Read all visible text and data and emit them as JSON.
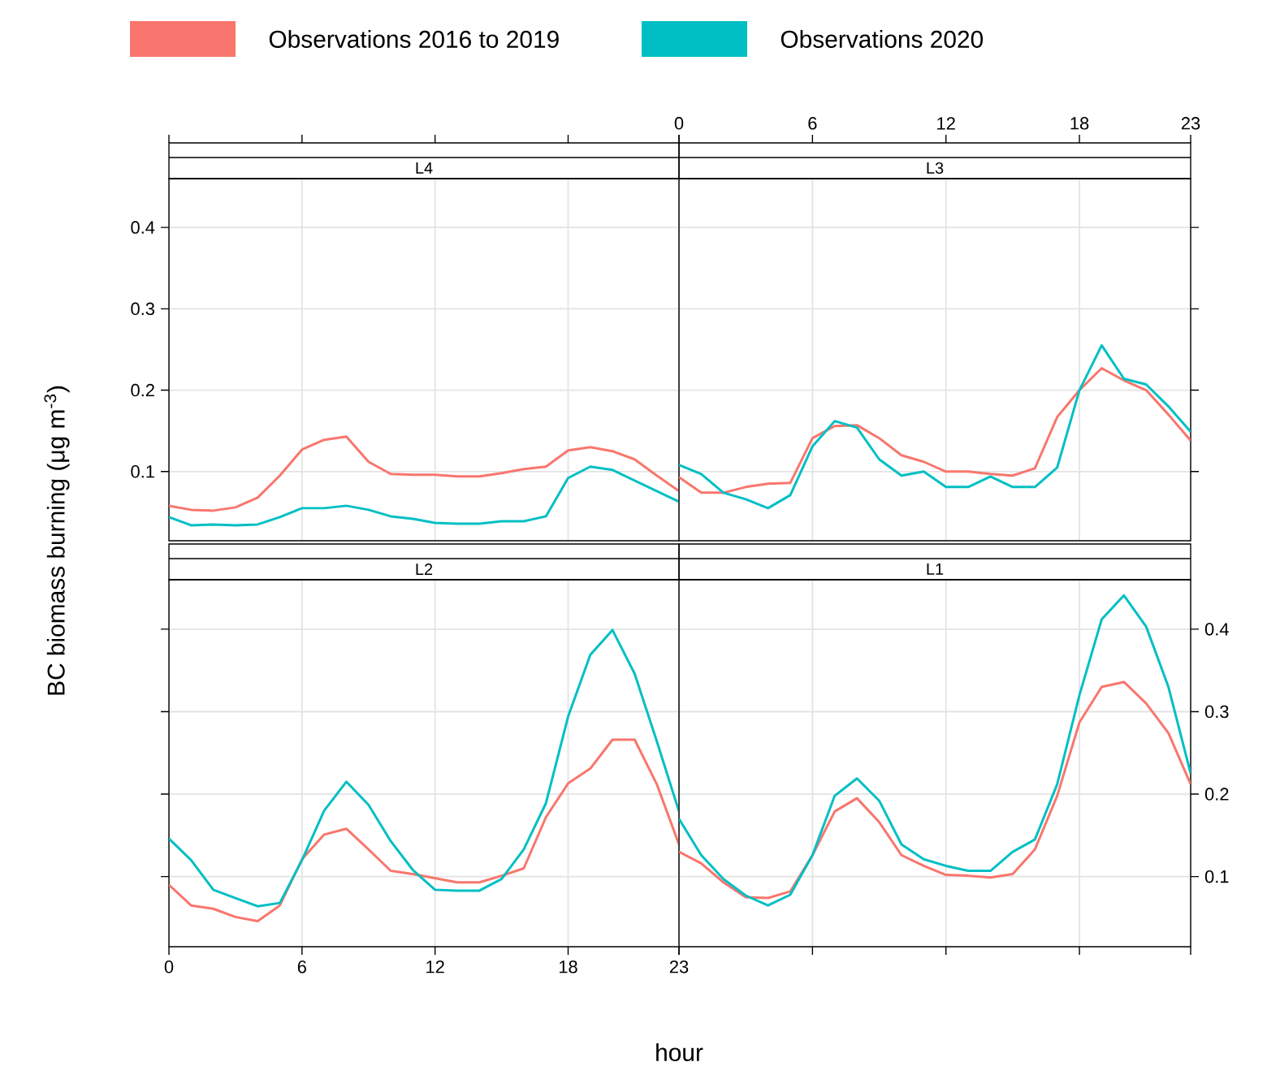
{
  "chart_data": [
    {
      "type": "line",
      "title": "L4",
      "ylabel": "BC biomass burning (μg m$^{-3}$)",
      "legend": "top",
      "grid": true,
      "tick_labels": "y",
      "xlim": [
        0,
        23
      ],
      "xticks": [
        0,
        6,
        12,
        18,
        23
      ],
      "ylim": [
        0.015,
        0.46
      ],
      "yticks": [
        0.1,
        0.2,
        0.3,
        0.4
      ],
      "x": [
        0,
        1,
        2,
        3,
        4,
        5,
        6,
        7,
        8,
        9,
        10,
        11,
        12,
        13,
        14,
        15,
        16,
        17,
        18,
        19,
        20,
        21,
        22,
        23
      ],
      "series": [
        {
          "name": "Observations 2016 to 2019",
          "color": "#f8766d",
          "values": [
            0.058,
            0.053,
            0.052,
            0.056,
            0.068,
            0.095,
            0.127,
            0.139,
            0.143,
            0.112,
            0.097,
            0.096,
            0.096,
            0.094,
            0.094,
            0.098,
            0.103,
            0.106,
            0.126,
            0.13,
            0.125,
            0.115,
            0.095,
            0.076
          ]
        },
        {
          "name": "Observations 2020",
          "color": "#00bfc4",
          "values": [
            0.044,
            0.034,
            0.035,
            0.034,
            0.035,
            0.044,
            0.055,
            0.055,
            0.058,
            0.053,
            0.045,
            0.042,
            0.037,
            0.036,
            0.036,
            0.039,
            0.039,
            0.045,
            0.092,
            0.106,
            0.102,
            0.089,
            0.076,
            0.063
          ]
        }
      ]
    },
    {
      "type": "line",
      "title": "L3",
      "grid": true,
      "tick_labels": "x",
      "xlim": [
        0,
        23
      ],
      "xticks": [
        0,
        6,
        12,
        18,
        23
      ],
      "ylim": [
        0.015,
        0.46
      ],
      "yticks": [
        0.1,
        0.2,
        0.3,
        0.4
      ],
      "x": [
        0,
        1,
        2,
        3,
        4,
        5,
        6,
        7,
        8,
        9,
        10,
        11,
        12,
        13,
        14,
        15,
        16,
        17,
        18,
        19,
        20,
        21,
        22,
        23
      ],
      "series": [
        {
          "color": "#f8766d",
          "values": [
            0.093,
            0.074,
            0.074,
            0.081,
            0.085,
            0.086,
            0.141,
            0.156,
            0.157,
            0.141,
            0.12,
            0.112,
            0.1,
            0.1,
            0.097,
            0.095,
            0.104,
            0.167,
            0.2,
            0.227,
            0.212,
            0.2,
            0.17,
            0.138
          ]
        },
        {
          "color": "#00bfc4",
          "values": [
            0.108,
            0.097,
            0.074,
            0.066,
            0.055,
            0.071,
            0.131,
            0.162,
            0.154,
            0.115,
            0.095,
            0.1,
            0.081,
            0.081,
            0.094,
            0.081,
            0.081,
            0.105,
            0.2,
            0.255,
            0.214,
            0.207,
            0.18,
            0.149
          ]
        }
      ]
    },
    {
      "type": "line",
      "title": "L2",
      "xlabel": "hour",
      "grid": true,
      "tick_labels": "x",
      "xlim": [
        0,
        23
      ],
      "xticks": [
        0,
        6,
        12,
        18,
        23
      ],
      "ylim": [
        0.015,
        0.46
      ],
      "yticks": [
        0.1,
        0.2,
        0.3,
        0.4
      ],
      "x": [
        0,
        1,
        2,
        3,
        4,
        5,
        6,
        7,
        8,
        9,
        10,
        11,
        12,
        13,
        14,
        15,
        16,
        17,
        18,
        19,
        20,
        21,
        22,
        23
      ],
      "series": [
        {
          "color": "#f8766d",
          "values": [
            0.09,
            0.065,
            0.061,
            0.051,
            0.046,
            0.065,
            0.121,
            0.151,
            0.158,
            0.133,
            0.107,
            0.103,
            0.098,
            0.093,
            0.093,
            0.101,
            0.11,
            0.172,
            0.213,
            0.231,
            0.266,
            0.266,
            0.212,
            0.139
          ]
        },
        {
          "color": "#00bfc4",
          "values": [
            0.146,
            0.12,
            0.084,
            0.074,
            0.064,
            0.068,
            0.12,
            0.18,
            0.215,
            0.187,
            0.143,
            0.108,
            0.084,
            0.083,
            0.083,
            0.097,
            0.133,
            0.189,
            0.294,
            0.369,
            0.399,
            0.346,
            0.264,
            0.179
          ]
        }
      ]
    },
    {
      "type": "line",
      "title": "L1",
      "grid": true,
      "tick_labels": "y",
      "xlim": [
        0,
        23
      ],
      "xticks": [
        0,
        6,
        12,
        18,
        23
      ],
      "ylim": [
        0.015,
        0.46
      ],
      "yticks": [
        0.1,
        0.2,
        0.3,
        0.4
      ],
      "x": [
        0,
        1,
        2,
        3,
        4,
        5,
        6,
        7,
        8,
        9,
        10,
        11,
        12,
        13,
        14,
        15,
        16,
        17,
        18,
        19,
        20,
        21,
        22,
        23
      ],
      "series": [
        {
          "color": "#f8766d",
          "values": [
            0.13,
            0.116,
            0.093,
            0.075,
            0.074,
            0.082,
            0.126,
            0.179,
            0.195,
            0.166,
            0.126,
            0.113,
            0.102,
            0.101,
            0.099,
            0.103,
            0.133,
            0.198,
            0.287,
            0.33,
            0.336,
            0.31,
            0.274,
            0.212
          ]
        },
        {
          "color": "#00bfc4",
          "values": [
            0.17,
            0.126,
            0.097,
            0.077,
            0.065,
            0.078,
            0.126,
            0.198,
            0.219,
            0.192,
            0.139,
            0.121,
            0.113,
            0.107,
            0.107,
            0.13,
            0.145,
            0.212,
            0.32,
            0.412,
            0.441,
            0.403,
            0.33,
            0.225
          ]
        }
      ]
    }
  ]
}
